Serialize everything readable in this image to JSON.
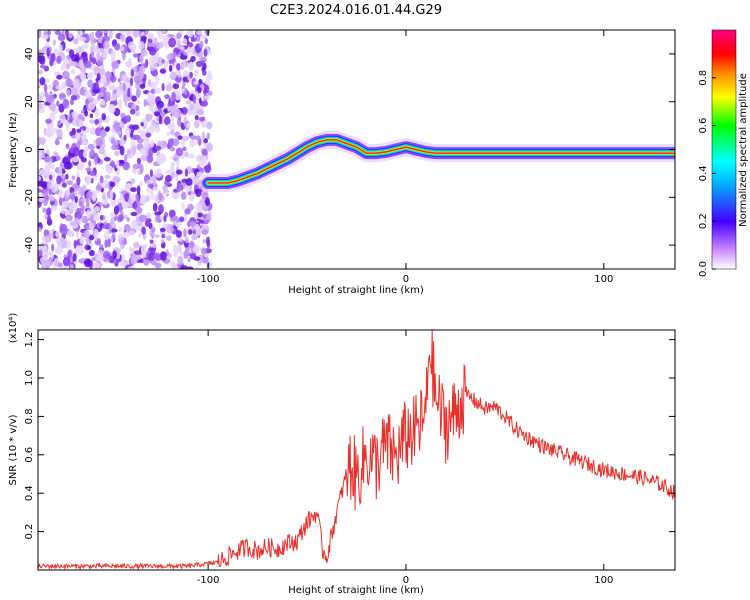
{
  "title": "C2E3.2024.016.01.44.G29",
  "chart_data": [
    {
      "type": "heatmap",
      "name": "spectrogram",
      "xlabel": "Height of straight line (km)",
      "ylabel": "Frequency (Hz)",
      "xlim": [
        -186,
        136
      ],
      "ylim": [
        -50,
        50
      ],
      "xticks": [
        -100,
        0,
        100
      ],
      "yticks": [
        -40,
        -20,
        0,
        20,
        40
      ],
      "noise_region_x": [
        -186,
        -99
      ],
      "ridge": {
        "x": [
          -100,
          -95,
          -90,
          -85,
          -80,
          -75,
          -70,
          -65,
          -60,
          -55,
          -50,
          -45,
          -40,
          -35,
          -30,
          -25,
          -20,
          -15,
          -10,
          -5,
          0,
          5,
          10,
          15,
          20,
          30,
          40,
          60,
          80,
          100,
          120,
          136
        ],
        "freq": [
          -14,
          -14,
          -14,
          -13,
          -11.5,
          -10,
          -8,
          -6,
          -4,
          -1.5,
          1,
          3,
          4,
          4,
          2.5,
          1,
          -1.5,
          -1.5,
          -1,
          0,
          1,
          0,
          -1,
          -1.5,
          -1.5,
          -1.5,
          -1.5,
          -1.5,
          -1.5,
          -1.5,
          -1.5,
          -1.5
        ]
      },
      "colorbar": {
        "label": "Normalized spectral amplitude",
        "range": [
          0.0,
          1.0
        ],
        "ticks": [
          "0.0",
          "0.2",
          "0.4",
          "0.6",
          "0.8"
        ]
      }
    },
    {
      "type": "line",
      "name": "snr",
      "xlabel": "Height of straight line (km)",
      "ylabel": "SNR (10 * v/v)",
      "scale_note": "(x10⁴)",
      "xlim": [
        -186,
        136
      ],
      "ylim": [
        0,
        1.25
      ],
      "xticks": [
        -100,
        0,
        100
      ],
      "yticks": [
        "0.2",
        "0.4",
        "0.6",
        "0.8",
        "1.0",
        "1.2"
      ],
      "color": "#e8302a",
      "x": [
        -186,
        -150,
        -110,
        -95,
        -90,
        -85,
        -80,
        -75,
        -70,
        -65,
        -60,
        -55,
        -50,
        -45,
        -42,
        -40,
        -35,
        -30,
        -28,
        -25,
        -20,
        -15,
        -10,
        -5,
        0,
        5,
        10,
        12,
        15,
        20,
        25,
        30,
        35,
        40,
        45,
        50,
        55,
        60,
        70,
        80,
        90,
        100,
        110,
        120,
        130,
        136
      ],
      "y": [
        0.02,
        0.02,
        0.02,
        0.04,
        0.07,
        0.1,
        0.12,
        0.1,
        0.12,
        0.11,
        0.14,
        0.15,
        0.25,
        0.3,
        0.1,
        0.07,
        0.3,
        0.5,
        0.55,
        0.48,
        0.6,
        0.55,
        0.65,
        0.58,
        0.7,
        0.72,
        0.8,
        1.2,
        0.9,
        0.75,
        0.82,
        0.92,
        0.88,
        0.84,
        0.85,
        0.8,
        0.74,
        0.7,
        0.64,
        0.6,
        0.56,
        0.52,
        0.5,
        0.48,
        0.44,
        0.4
      ]
    }
  ]
}
